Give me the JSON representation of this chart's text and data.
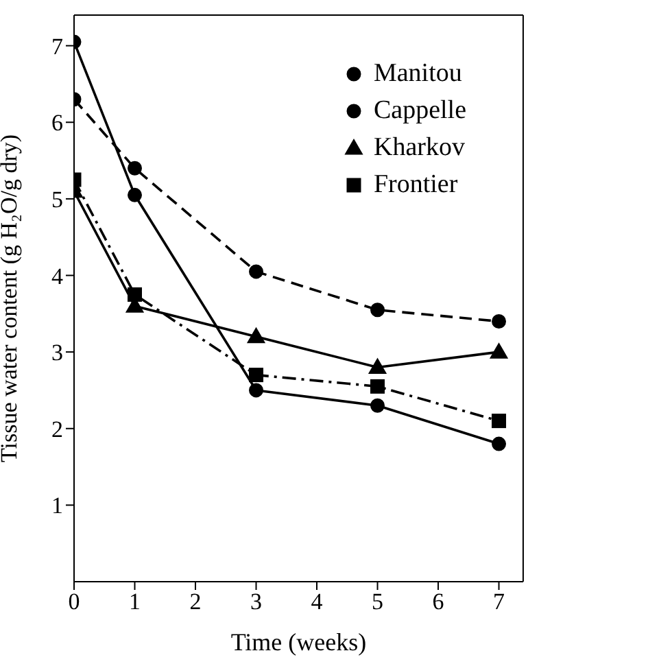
{
  "chart_data": {
    "type": "line",
    "xlabel": "Time (weeks)",
    "ylabel": "Tissue water content (g H₂O/g dry)",
    "x": [
      0,
      1,
      3,
      5,
      7
    ],
    "xlim": [
      0,
      7.4
    ],
    "xticks": [
      0,
      1,
      2,
      3,
      4,
      5,
      6,
      7
    ],
    "ylim": [
      0,
      7.4
    ],
    "yticks": [
      1,
      2,
      3,
      4,
      5,
      6,
      7
    ],
    "legend": "top right",
    "grid": false,
    "series": [
      {
        "name": "Manitou",
        "color": "#000000",
        "values": [
          6.3,
          5.4,
          4.05,
          3.55,
          3.4
        ],
        "marker": "circle",
        "line_style": "dashed"
      },
      {
        "name": "Cappelle",
        "color": "#000000",
        "values": [
          7.05,
          5.05,
          2.5,
          2.3,
          1.8
        ],
        "marker": "circle",
        "line_style": "solid"
      },
      {
        "name": "Kharkov",
        "color": "#000000",
        "values": [
          5.1,
          3.6,
          3.2,
          2.8,
          3.0
        ],
        "marker": "triangle",
        "line_style": "solid"
      },
      {
        "name": "Frontier",
        "color": "#000000",
        "values": [
          5.25,
          3.75,
          2.7,
          2.55,
          2.1
        ],
        "marker": "square",
        "line_style": "dashdot"
      }
    ]
  }
}
